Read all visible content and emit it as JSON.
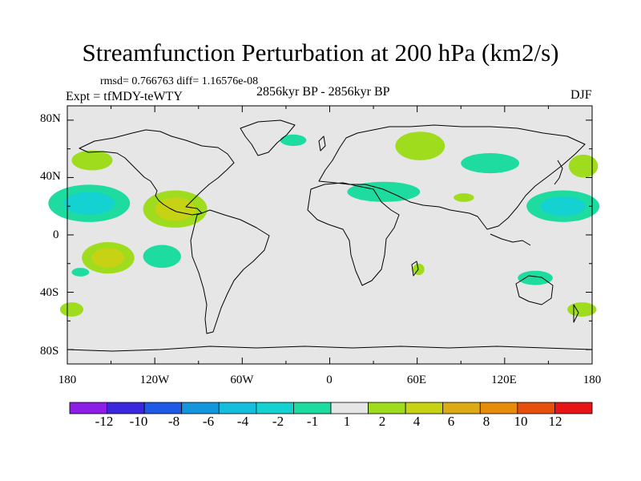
{
  "title": "Streamfunction Perturbation at 200 hPa (km2/s)",
  "stats": "rmsd= 0.766763 diff= 1.16576e-08",
  "period": "2856kyr BP - 2856kyr BP",
  "experiment": "Expt = tfMDY-teWTY",
  "season": "DJF",
  "y_axis_labels": [
    "80N",
    "40N",
    "0",
    "40S",
    "80S"
  ],
  "x_axis_labels": [
    "180",
    "120W",
    "60W",
    "0",
    "60E",
    "120E",
    "180"
  ],
  "colorbar": {
    "labels": [
      "-12",
      "-10",
      "-8",
      "-6",
      "-4",
      "-2",
      "-1",
      "1",
      "2",
      "4",
      "6",
      "8",
      "10",
      "12"
    ],
    "colors": [
      "#8c1ee6",
      "#3c28dc",
      "#1e5ae6",
      "#1496dc",
      "#14bedc",
      "#14d2d2",
      "#1edca0",
      "#e6e6e6",
      "#a0dc1e",
      "#c8d214",
      "#dcaa14",
      "#e68c0a",
      "#e6500a",
      "#e61414"
    ]
  },
  "chart_data": {
    "type": "contour-map",
    "variable": "200 hPa streamfunction perturbation",
    "units": "km2/s",
    "lon_range": [
      -180,
      180
    ],
    "lat_range": [
      -90,
      90
    ],
    "levels": [
      -12,
      -10,
      -8,
      -6,
      -4,
      -2,
      -1,
      1,
      2,
      4,
      6,
      8,
      10,
      12
    ],
    "features": [
      {
        "region": "NE Pacific",
        "lon": -165,
        "lat": 22,
        "value": -3
      },
      {
        "region": "Mexico / E Pacific",
        "lon": -106,
        "lat": 18,
        "value": 3
      },
      {
        "region": "S Pacific",
        "lon": -152,
        "lat": -16,
        "value": 3
      },
      {
        "region": "SE Pacific",
        "lon": -115,
        "lat": -15,
        "value": -1.5
      },
      {
        "region": "N Pacific (east)",
        "lon": -163,
        "lat": 52,
        "value": 1.5
      },
      {
        "region": "Iceland",
        "lon": -25,
        "lat": 66,
        "value": -1.5
      },
      {
        "region": "W Siberia",
        "lon": 62,
        "lat": 62,
        "value": 1.5
      },
      {
        "region": "E Siberia",
        "lon": 110,
        "lat": 50,
        "value": -1.5
      },
      {
        "region": "Middle East",
        "lon": 37,
        "lat": 30,
        "value": -1.5
      },
      {
        "region": "Tibet",
        "lon": 92,
        "lat": 26,
        "value": 1.5
      },
      {
        "region": "W Pacific",
        "lon": 160,
        "lat": 20,
        "value": -3
      },
      {
        "region": "NW Pacific",
        "lon": 174,
        "lat": 48,
        "value": 1.5
      },
      {
        "region": "Australia",
        "lon": 141,
        "lat": -30,
        "value": -1.5
      },
      {
        "region": "Madagascar",
        "lon": 61,
        "lat": -24,
        "value": 1.5
      },
      {
        "region": "S Pacific (far)",
        "lon": -171,
        "lat": -26,
        "value": -1.5
      },
      {
        "region": "S Pacific / Dateline",
        "lon": -177,
        "lat": -52,
        "value": 1.5
      },
      {
        "region": "S Ocean",
        "lon": 173,
        "lat": -52,
        "value": 1.5
      }
    ]
  }
}
